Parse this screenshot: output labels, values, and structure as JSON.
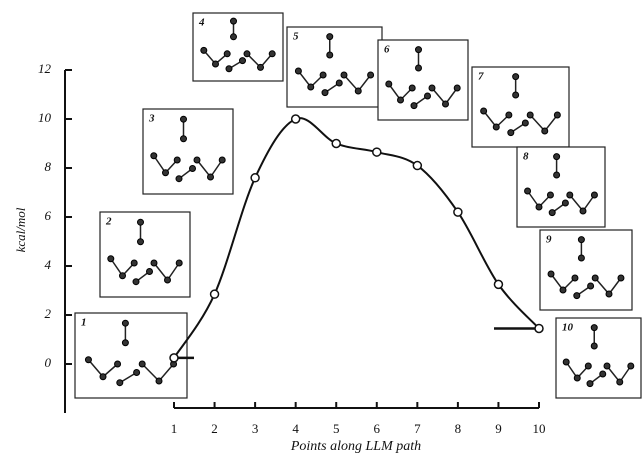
{
  "chart_data": {
    "type": "line",
    "x_label": "Points along LLM path",
    "y_label": "kcal/mol",
    "x": [
      1,
      2,
      3,
      4,
      5,
      6,
      7,
      8,
      9,
      10
    ],
    "series": [
      {
        "color": "#111111",
        "values": [
          0.25,
          2.85,
          7.6,
          10.0,
          9.0,
          8.65,
          8.1,
          6.2,
          3.25,
          1.45
        ]
      }
    ],
    "xlim": [
      1,
      10
    ],
    "xticks": [
      1,
      2,
      3,
      4,
      5,
      6,
      7,
      8,
      9,
      10
    ],
    "ylim": [
      -2,
      12
    ],
    "yticks": [
      0,
      2,
      4,
      6,
      8,
      10,
      12
    ],
    "inset_labels": [
      "1",
      "2",
      "3",
      "4",
      "5",
      "6",
      "7",
      "8",
      "9",
      "10"
    ]
  }
}
